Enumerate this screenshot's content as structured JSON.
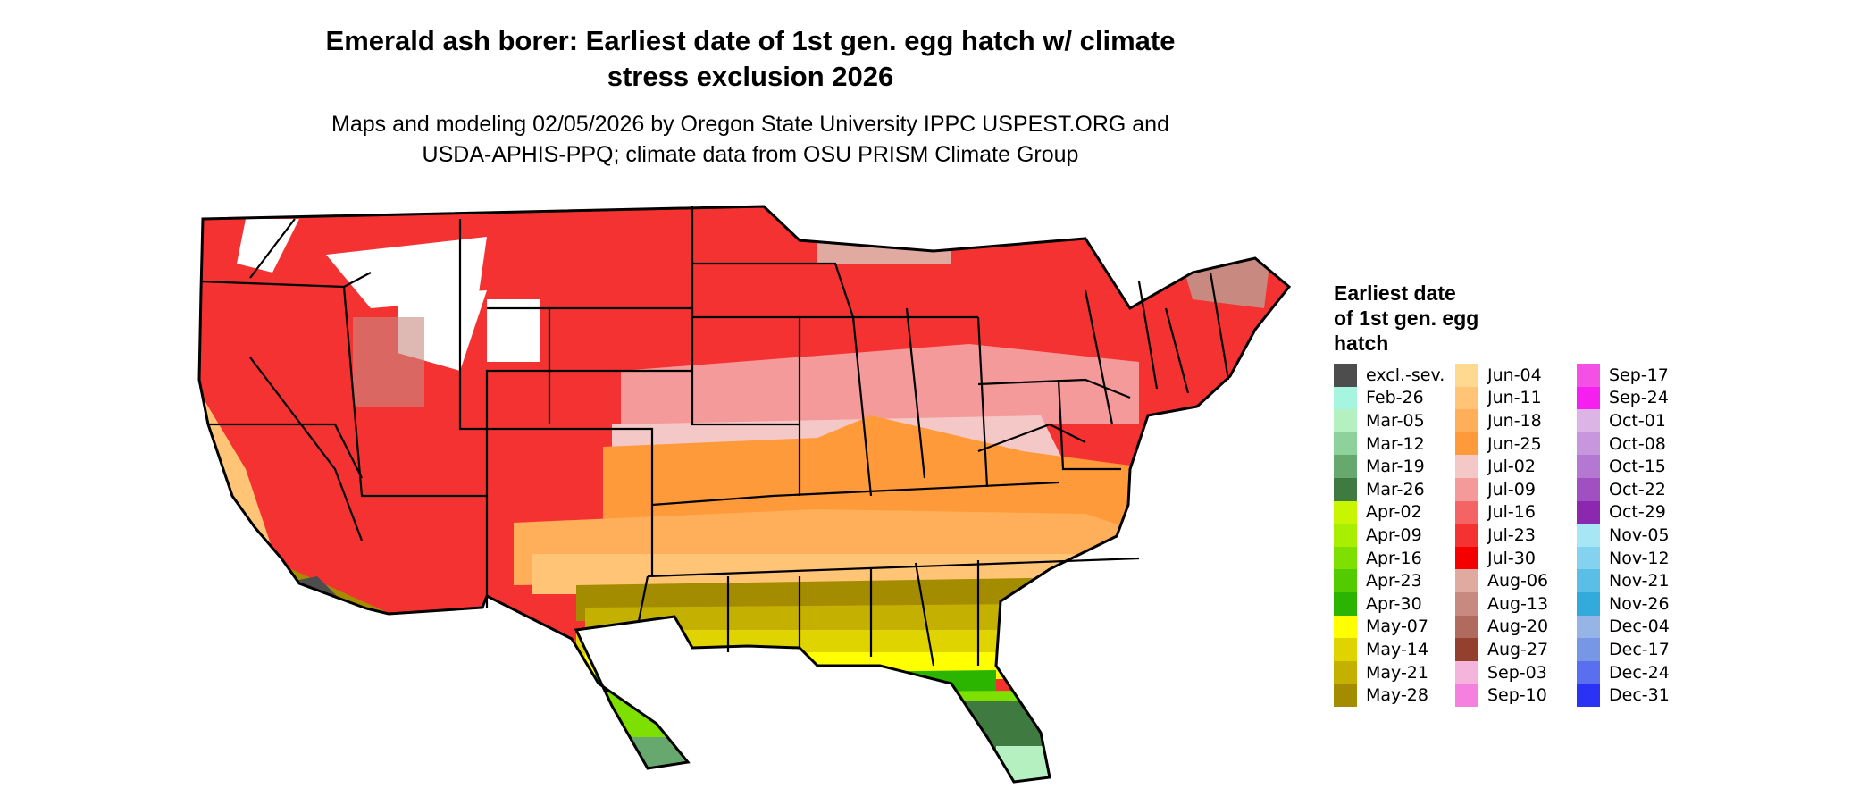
{
  "header": {
    "title_line1": "Emerald ash borer: Earliest date of 1st gen. egg hatch w/ climate",
    "title_line2": "stress exclusion 2026",
    "subtitle_line1": "Maps and modeling 02/05/2026 by Oregon State University IPPC USPEST.ORG and",
    "subtitle_line2": "USDA-APHIS-PPQ; climate data from OSU PRISM Climate Group"
  },
  "legend": {
    "title_line1": "Earliest date",
    "title_line2": "of 1st gen. egg",
    "title_line3": "hatch",
    "columns": [
      [
        {
          "label": "excl.-sev.",
          "color": "#4d4d4d"
        },
        {
          "label": "Feb-26",
          "color": "#a6f5e0"
        },
        {
          "label": "Mar-05",
          "color": "#b4f0c0"
        },
        {
          "label": "Mar-12",
          "color": "#8fd19a"
        },
        {
          "label": "Mar-19",
          "color": "#66a86e"
        },
        {
          "label": "Mar-26",
          "color": "#3f7a40"
        },
        {
          "label": "Apr-02",
          "color": "#c8f500"
        },
        {
          "label": "Apr-09",
          "color": "#a8ee00"
        },
        {
          "label": "Apr-16",
          "color": "#7ee000"
        },
        {
          "label": "Apr-23",
          "color": "#52cc00"
        },
        {
          "label": "Apr-30",
          "color": "#2bb500"
        },
        {
          "label": "May-07",
          "color": "#ffff00"
        },
        {
          "label": "May-14",
          "color": "#e0d400"
        },
        {
          "label": "May-21",
          "color": "#c4b000"
        },
        {
          "label": "May-28",
          "color": "#a38c00"
        }
      ],
      [
        {
          "label": "Jun-04",
          "color": "#ffd990"
        },
        {
          "label": "Jun-11",
          "color": "#ffc476"
        },
        {
          "label": "Jun-18",
          "color": "#ffae5a"
        },
        {
          "label": "Jun-25",
          "color": "#ff9a3a"
        },
        {
          "label": "Jul-02",
          "color": "#f5c8c8"
        },
        {
          "label": "Jul-09",
          "color": "#f59a9a"
        },
        {
          "label": "Jul-16",
          "color": "#f56464"
        },
        {
          "label": "Jul-23",
          "color": "#f53232"
        },
        {
          "label": "Jul-30",
          "color": "#f50000"
        },
        {
          "label": "Aug-06",
          "color": "#e0aaa0"
        },
        {
          "label": "Aug-13",
          "color": "#c88a80"
        },
        {
          "label": "Aug-20",
          "color": "#b06a5e"
        },
        {
          "label": "Aug-27",
          "color": "#94402f"
        },
        {
          "label": "Sep-03",
          "color": "#f5b4dc"
        },
        {
          "label": "Sep-10",
          "color": "#f580e0"
        }
      ],
      [
        {
          "label": "Sep-17",
          "color": "#f550e6"
        },
        {
          "label": "Sep-24",
          "color": "#f520f0"
        },
        {
          "label": "Oct-01",
          "color": "#dcb4e6"
        },
        {
          "label": "Oct-08",
          "color": "#c896dc"
        },
        {
          "label": "Oct-15",
          "color": "#b478d2"
        },
        {
          "label": "Oct-22",
          "color": "#a050c0"
        },
        {
          "label": "Oct-29",
          "color": "#8c28b0"
        },
        {
          "label": "Nov-05",
          "color": "#a6e6f5"
        },
        {
          "label": "Nov-12",
          "color": "#82d2f0"
        },
        {
          "label": "Nov-21",
          "color": "#5abee6"
        },
        {
          "label": "Nov-26",
          "color": "#32aadc"
        },
        {
          "label": "Dec-04",
          "color": "#96b4e6"
        },
        {
          "label": "Dec-17",
          "color": "#7896e6"
        },
        {
          "label": "Dec-24",
          "color": "#5a6ef0"
        },
        {
          "label": "Dec-31",
          "color": "#2a32f5"
        }
      ]
    ]
  }
}
